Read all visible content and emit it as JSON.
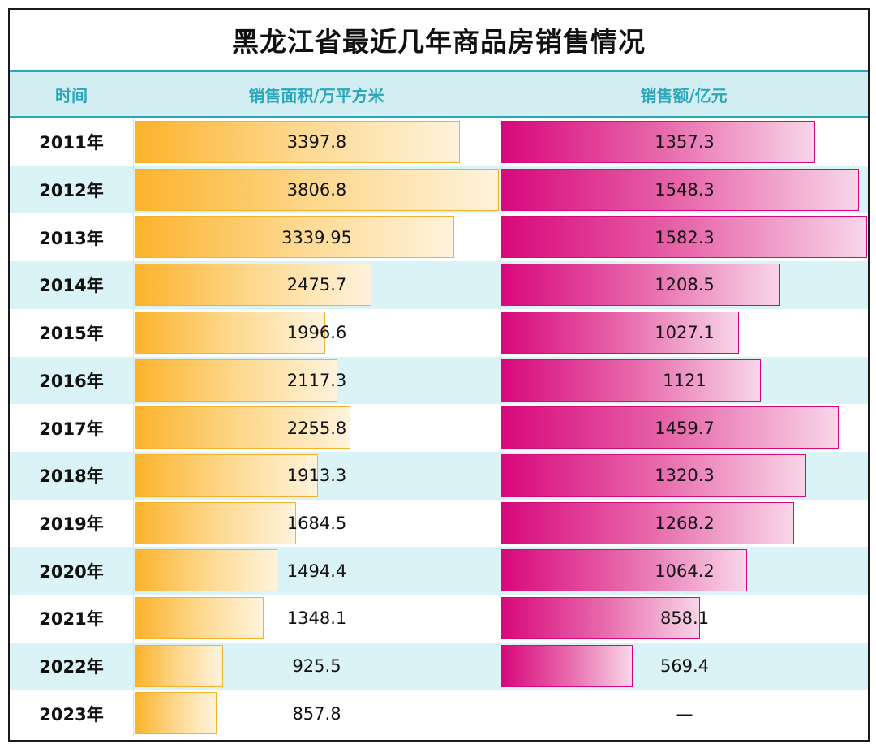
{
  "title": "黑龙江省最近几年商品房销售情况",
  "headers": {
    "year": "时间",
    "area": "销售面积/万平方米",
    "sales": "销售额/亿元"
  },
  "colors": {
    "header_text": "#2aa7b9",
    "header_bg": "#d3eef3",
    "row_alt_bg": "#d9f3f7",
    "area_bar": "#fcb32c",
    "sales_bar": "#d8087c"
  },
  "chart_data": {
    "type": "bar",
    "title": "黑龙江省最近几年商品房销售情况",
    "orientation": "horizontal",
    "categories": [
      "2011年",
      "2012年",
      "2013年",
      "2014年",
      "2015年",
      "2016年",
      "2017年",
      "2018年",
      "2019年",
      "2020年",
      "2021年",
      "2022年",
      "2023年"
    ],
    "series": [
      {
        "name": "销售面积/万平方米",
        "values": [
          3397.8,
          3806.8,
          3339.95,
          2475.7,
          1996.6,
          2117.3,
          2255.8,
          1913.3,
          1684.5,
          1494.4,
          1348.1,
          925.5,
          857.8
        ],
        "labels": [
          "3397.8",
          "3806.8",
          "3339.95",
          "2475.7",
          "1996.6",
          "2117.3",
          "2255.8",
          "1913.3",
          "1684.5",
          "1494.4",
          "1348.1",
          "925.5",
          "857.8"
        ]
      },
      {
        "name": "销售额/亿元",
        "values": [
          1357.3,
          1548.3,
          1582.3,
          1208.5,
          1027.1,
          1121,
          1459.7,
          1320.3,
          1268.2,
          1064.2,
          858.1,
          569.4,
          null
        ],
        "labels": [
          "1357.3",
          "1548.3",
          "1582.3",
          "1208.5",
          "1027.1",
          "1121",
          "1459.7",
          "1320.3",
          "1268.2",
          "1064.2",
          "858.1",
          "569.4",
          "—"
        ]
      }
    ]
  }
}
